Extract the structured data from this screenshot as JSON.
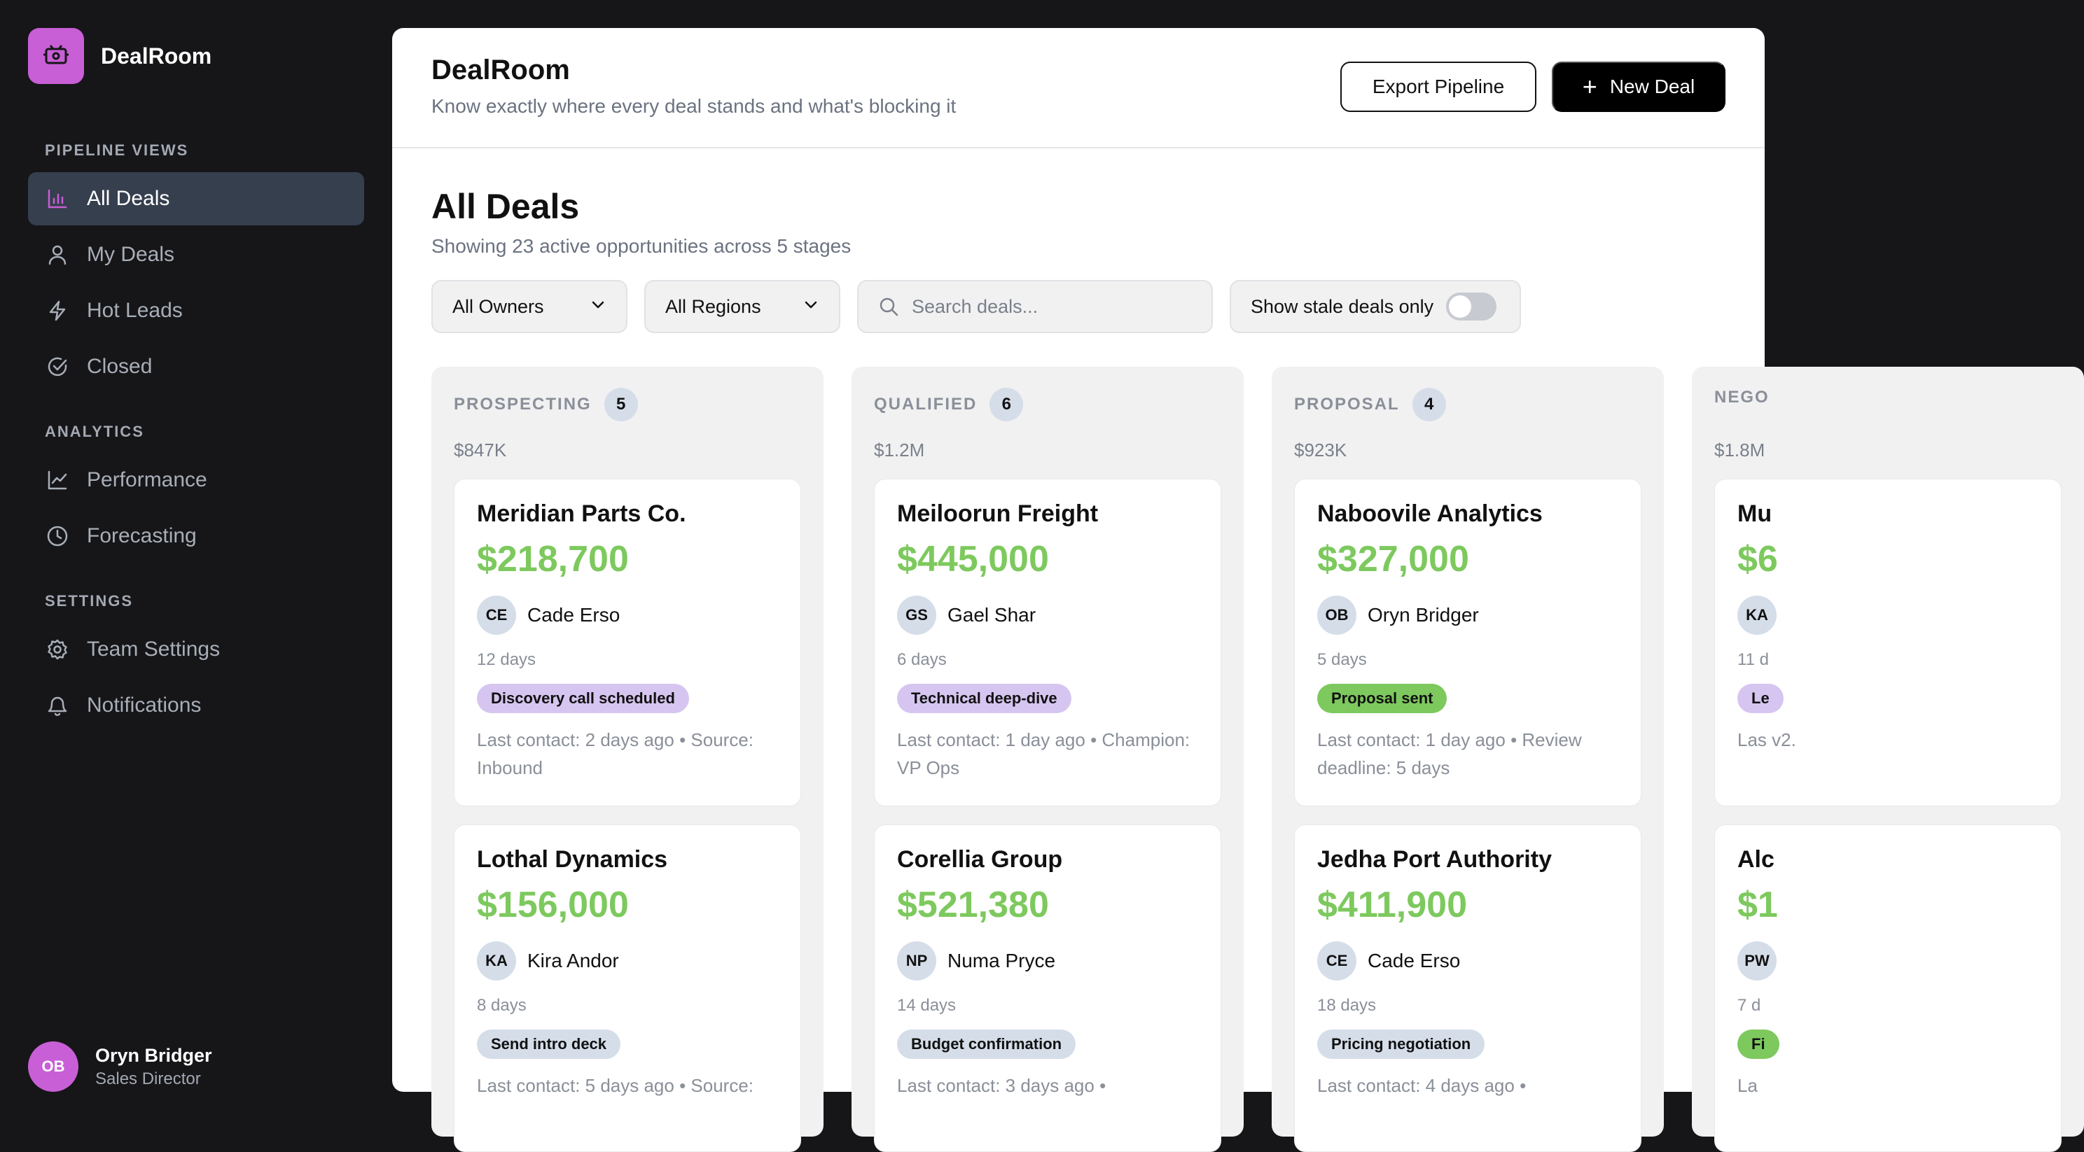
{
  "app": {
    "name": "DealRoom",
    "brand_color": "#c85fd6"
  },
  "sidebar": {
    "sections": [
      {
        "title": "PIPELINE VIEWS",
        "items": [
          {
            "label": "All Deals",
            "icon": "bar-chart-icon",
            "active": true
          },
          {
            "label": "My Deals",
            "icon": "user-icon"
          },
          {
            "label": "Hot Leads",
            "icon": "lightning-icon"
          },
          {
            "label": "Closed",
            "icon": "check-circle-icon"
          }
        ]
      },
      {
        "title": "ANALYTICS",
        "items": [
          {
            "label": "Performance",
            "icon": "line-chart-icon"
          },
          {
            "label": "Forecasting",
            "icon": "clock-icon"
          }
        ]
      },
      {
        "title": "SETTINGS",
        "items": [
          {
            "label": "Team Settings",
            "icon": "gear-icon"
          },
          {
            "label": "Notifications",
            "icon": "bell-icon"
          }
        ]
      }
    ],
    "profile": {
      "initials": "OB",
      "name": "Oryn Bridger",
      "role": "Sales Director"
    }
  },
  "header": {
    "title": "DealRoom",
    "subtitle": "Know exactly where every deal stands and what's blocking it",
    "export_label": "Export Pipeline",
    "new_label": "New Deal"
  },
  "page": {
    "title": "All Deals",
    "subtitle": "Showing 23 active opportunities across 5 stages"
  },
  "filters": {
    "owners": "All Owners",
    "regions": "All Regions",
    "search_placeholder": "Search deals...",
    "stale_label": "Show stale deals only",
    "stale_on": false
  },
  "columns": [
    {
      "name": "PROSPECTING",
      "count": "5",
      "total": "$847K",
      "cards": [
        {
          "company": "Meridian Parts Co.",
          "value": "$218,700",
          "initials": "CE",
          "owner": "Cade Erso",
          "days": "12 days",
          "tag": "Discovery call scheduled",
          "tag_color": "purple",
          "note": "Last contact: 2 days ago • Source: Inbound"
        },
        {
          "company": "Lothal Dynamics",
          "value": "$156,000",
          "initials": "KA",
          "owner": "Kira Andor",
          "days": "8 days",
          "tag": "Send intro deck",
          "tag_color": "blue",
          "note": "Last contact: 5 days ago • Source:"
        }
      ]
    },
    {
      "name": "QUALIFIED",
      "count": "6",
      "total": "$1.2M",
      "cards": [
        {
          "company": "Meiloorun Freight",
          "value": "$445,000",
          "initials": "GS",
          "owner": "Gael Shar",
          "days": "6 days",
          "tag": "Technical deep-dive",
          "tag_color": "purple",
          "note": "Last contact: 1 day ago • Champion: VP Ops"
        },
        {
          "company": "Corellia Group",
          "value": "$521,380",
          "initials": "NP",
          "owner": "Numa Pryce",
          "days": "14 days",
          "tag": "Budget confirmation",
          "tag_color": "blue",
          "note": "Last contact: 3 days ago •"
        }
      ]
    },
    {
      "name": "PROPOSAL",
      "count": "4",
      "total": "$923K",
      "cards": [
        {
          "company": "Naboovile Analytics",
          "value": "$327,000",
          "initials": "OB",
          "owner": "Oryn Bridger",
          "days": "5 days",
          "tag": "Proposal sent",
          "tag_color": "green",
          "note": "Last contact: 1 day ago • Review deadline: 5 days"
        },
        {
          "company": "Jedha Port Authority",
          "value": "$411,900",
          "initials": "CE",
          "owner": "Cade Erso",
          "days": "18 days",
          "tag": "Pricing negotiation",
          "tag_color": "blue",
          "note": "Last contact: 4 days ago •"
        }
      ]
    },
    {
      "name": "NEGO",
      "count": "",
      "total": "$1.8M",
      "cards": [
        {
          "company": "Mu",
          "value": "$6",
          "initials": "KA",
          "owner": "",
          "days": "11 d",
          "tag": "Le",
          "tag_color": "purple",
          "note": "Las v2."
        },
        {
          "company": "Alc",
          "value": "$1",
          "initials": "PW",
          "owner": "",
          "days": "7 d",
          "tag": "Fi",
          "tag_color": "green",
          "note": "La"
        }
      ]
    }
  ]
}
